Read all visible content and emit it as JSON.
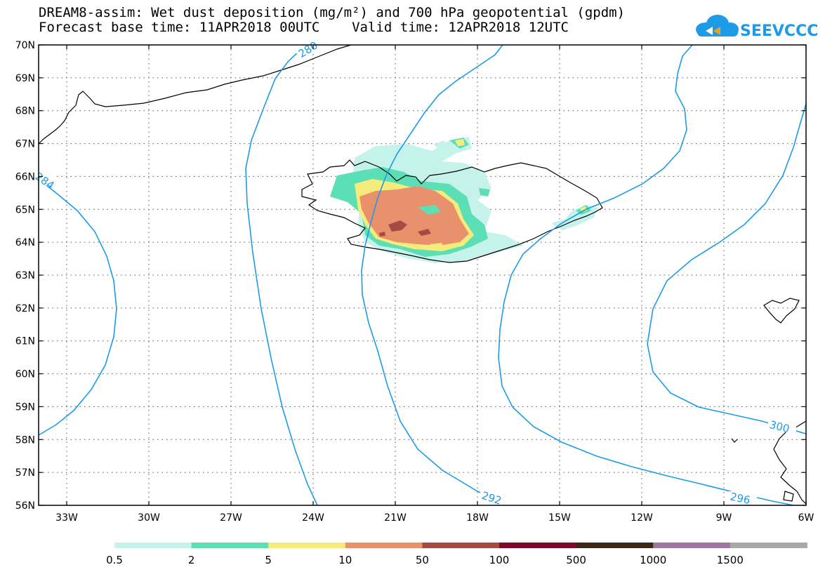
{
  "title_line1": "DREAM8-assim: Wet dust deposition (mg/m²) and 700 hPa geopotential (gpdm)",
  "title_line2": "Forecast base time: 11APR2018 00UTC    Valid time: 12APR2018 12UTC",
  "logo_text": "SEEVCCC",
  "lat_labels": [
    "70N",
    "69N",
    "68N",
    "67N",
    "66N",
    "65N",
    "64N",
    "63N",
    "62N",
    "61N",
    "60N",
    "59N",
    "58N",
    "57N",
    "56N"
  ],
  "lon_labels": [
    "33W",
    "30W",
    "27W",
    "24W",
    "21W",
    "18W",
    "15W",
    "12W",
    "9W",
    "6W"
  ],
  "contour_labels": [
    "280",
    "284",
    "292",
    "296",
    "300"
  ],
  "legend": {
    "colors": [
      "#c6f2ec",
      "#5ddfb5",
      "#f6ec7c",
      "#e9916c",
      "#a84a44",
      "#7c0a2c",
      "#3c2818",
      "#9c78a0",
      "#a8a8a8"
    ],
    "labels": [
      "0.5",
      "2",
      "5",
      "10",
      "50",
      "100",
      "500",
      "1000",
      "1500"
    ]
  }
}
